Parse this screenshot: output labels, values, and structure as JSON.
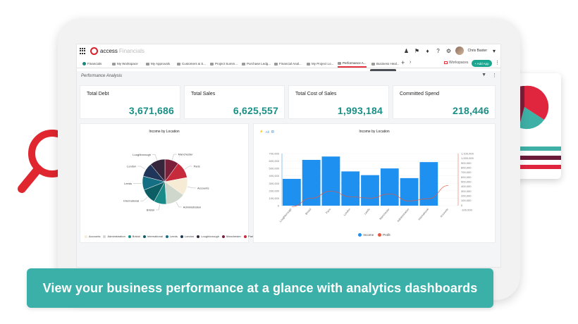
{
  "app": {
    "brand": "access",
    "brand_sub": "Financials",
    "user_name": "Chris Baxter"
  },
  "tabs": [
    {
      "label": "Financials"
    },
    {
      "label": "My Workspace"
    },
    {
      "label": "My Approvals"
    },
    {
      "label": "Customers & S..."
    },
    {
      "label": "Project Summ..."
    },
    {
      "label": "Purchase Ledg..."
    },
    {
      "label": "Financial Anal..."
    },
    {
      "label": "My Project Lo..."
    },
    {
      "label": "Performance A..."
    },
    {
      "label": "Business Heal..."
    }
  ],
  "tooltip": "Business Health",
  "workspace_link": "Workspaces",
  "add_app_label": "+ Add App",
  "dashboard": {
    "title": "Performance Analysis",
    "kpis": [
      {
        "label": "Total Debt",
        "value": "3,671,686"
      },
      {
        "label": "Total Sales",
        "value": "6,625,557"
      },
      {
        "label": "Total Cost of Sales",
        "value": "1,993,184"
      },
      {
        "label": "Committed Spend",
        "value": "218,446"
      }
    ]
  },
  "filter": {
    "label": "All"
  },
  "chart_data": [
    {
      "type": "pie",
      "title": "Income by Location",
      "categories": [
        "Manchester",
        "Paris",
        "Accounts",
        "Administration",
        "Bristol",
        "International",
        "Leeds",
        "London",
        "Loughborough"
      ],
      "values": [
        10,
        12,
        13,
        14,
        9,
        11,
        10,
        10,
        11
      ],
      "colors": [
        "#7b1f3a",
        "#c62a3b",
        "#f6ecd5",
        "#cfd6cc",
        "#1a8a88",
        "#0c5d64",
        "#156f84",
        "#1f3559",
        "#36263b"
      ],
      "legend": [
        "Accounts",
        "Administration",
        "Bristol",
        "International",
        "Leeds",
        "London",
        "Loughborough",
        "Manchester",
        "Paris"
      ],
      "legend_colors": [
        "#f6ecd5",
        "#cfd6cc",
        "#1a8a88",
        "#0c5d64",
        "#156f84",
        "#1f3559",
        "#36263b",
        "#7b1f3a",
        "#c62a3b"
      ]
    },
    {
      "type": "bar",
      "title": "Income by Location",
      "categories": [
        "Loughborough",
        "Bristol",
        "Paris",
        "London",
        "Leeds",
        "Manchester",
        "Administration",
        "International",
        "Accounts"
      ],
      "series": [
        {
          "name": "Income",
          "values": [
            360000,
            615000,
            660000,
            460000,
            410000,
            500000,
            370000,
            585000,
            0
          ],
          "color": "#1e90f0"
        },
        {
          "name": "Profit",
          "values": [
            -30000,
            150000,
            300000,
            180000,
            150000,
            240000,
            90000,
            140000,
            420000
          ],
          "color": "#e4573f"
        }
      ],
      "y_ticks": [
        "700,000",
        "600,000",
        "500,000",
        "400,000",
        "300,000",
        "200,000",
        "100,000",
        "0"
      ],
      "y2_ticks": [
        "1,100,000",
        "1,000,000",
        "900,000",
        "800,000",
        "700,000",
        "600,000",
        "500,000",
        "400,000",
        "300,000",
        "200,000",
        "100,000",
        "0",
        "-100,000"
      ],
      "ylim": [
        0,
        700000
      ],
      "legend": [
        "Income",
        "Profit"
      ]
    }
  ],
  "banner": "View your business performance at a glance with analytics dashboards"
}
